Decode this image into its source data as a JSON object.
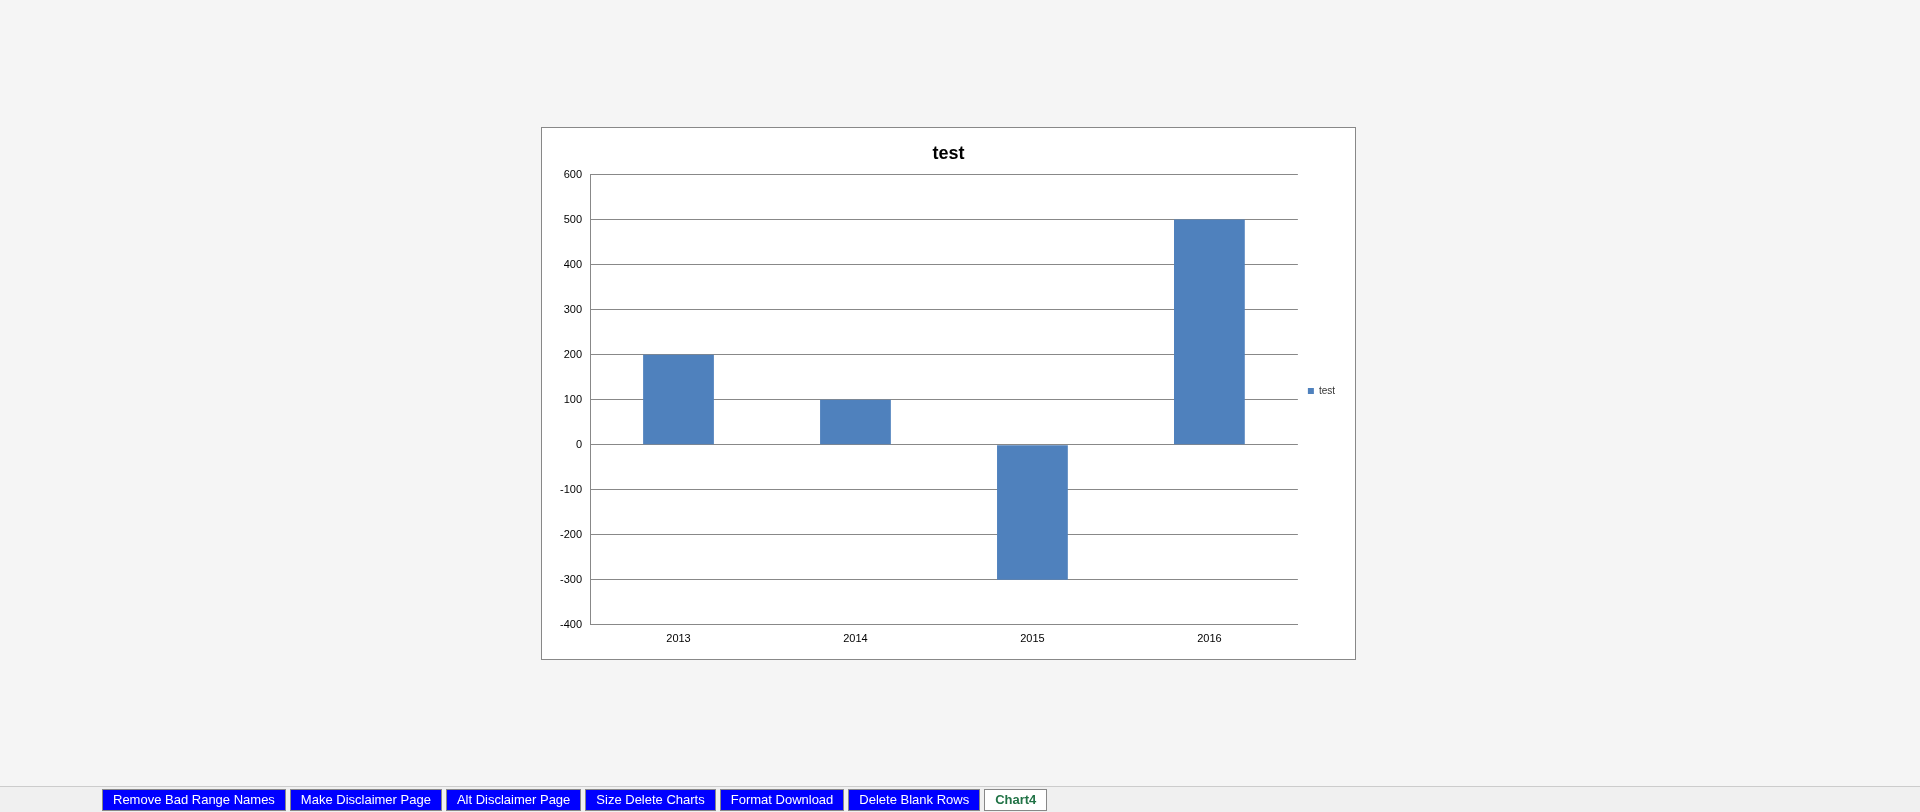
{
  "chart_data": {
    "type": "bar",
    "title": "test",
    "categories": [
      "2013",
      "2014",
      "2015",
      "2016"
    ],
    "series": [
      {
        "name": "test",
        "color": "#4f81bd",
        "values": [
          200,
          100,
          -300,
          500
        ]
      }
    ],
    "ylim": [
      -400,
      600
    ],
    "yticks": [
      -400,
      -300,
      -200,
      -100,
      0,
      100,
      200,
      300,
      400,
      500,
      600
    ],
    "grid": "y",
    "legend": "right",
    "annotations": [
      "Remove Bad Range Names",
      "Make Disclaimer Page",
      "Alt Disclaimer Page",
      "Size Delete Charts",
      "Format Download",
      "Delete Blank Rows",
      "Chart4"
    ]
  }
}
